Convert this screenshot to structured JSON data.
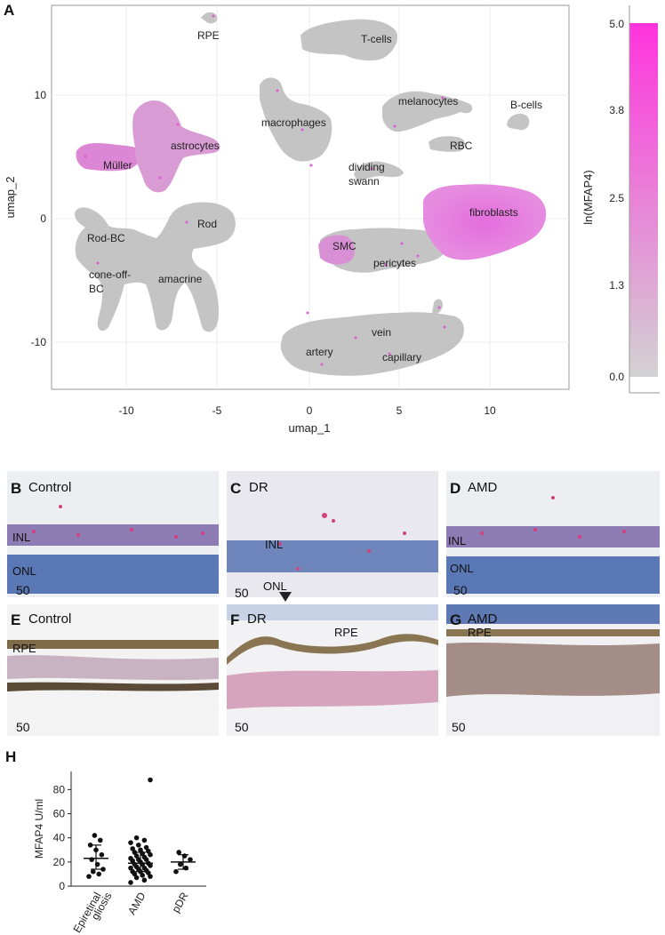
{
  "panelA": {
    "letter": "A",
    "xlabel": "umap_1",
    "ylabel": "umap_2",
    "xticks": [
      "-10",
      "-5",
      "0",
      "5",
      "10"
    ],
    "yticks": [
      "10",
      "0",
      "-10"
    ],
    "clusters": [
      "RPE",
      "T-cells",
      "melanocytes",
      "B-cells",
      "macrophages",
      "RBC",
      "astrocytes",
      "Müller",
      "dividing",
      "swann",
      "fibroblasts",
      "Rod",
      "Rod-BC",
      "SMC",
      "pericytes",
      "cone-off-",
      "BC",
      "amacrine",
      "vein",
      "artery",
      "capillary"
    ],
    "colorbar": {
      "label": "ln(MFAP4)",
      "ticks": [
        "5.0",
        "3.8",
        "2.5",
        "1.3",
        "0.0"
      ],
      "color_low": "#d2d2d2",
      "color_high": "#ff33dd"
    },
    "point_color": "#c4c4c4",
    "highlight_color": "#e070d8"
  },
  "micro": {
    "B": {
      "letter": "B",
      "title": "Control",
      "labels": [
        "INL",
        "ONL"
      ],
      "scale": "50"
    },
    "C": {
      "letter": "C",
      "title": "DR",
      "labels": [
        "INL",
        "ONL"
      ],
      "scale": "50"
    },
    "D": {
      "letter": "D",
      "title": "AMD",
      "labels": [
        "INL",
        "ONL"
      ],
      "scale": "50"
    },
    "E": {
      "letter": "E",
      "title": "Control",
      "labels": [
        "RPE"
      ],
      "scale": "50"
    },
    "F": {
      "letter": "F",
      "title": "DR",
      "labels": [
        "RPE"
      ],
      "scale": "50"
    },
    "G": {
      "letter": "G",
      "title": "AMD",
      "labels": [
        "RPE"
      ],
      "scale": "50"
    }
  },
  "panelH": {
    "letter": "H"
  },
  "chart_data": {
    "type": "scatter",
    "ylabel": "MFAP4 U/ml",
    "yticks": [
      "0",
      "20",
      "40",
      "60",
      "80"
    ],
    "ylim": [
      0,
      95
    ],
    "categories": [
      "Epiretinal gliosis",
      "AMD",
      "pDR"
    ],
    "category_labels": [
      [
        "Epiretinal",
        "gliosis"
      ],
      [
        "AMD"
      ],
      [
        "pDR"
      ]
    ],
    "series": [
      {
        "values": [
          8,
          10,
          12,
          14,
          18,
          22,
          26,
          30,
          34,
          38,
          42
        ]
      },
      {
        "values": [
          3,
          5,
          7,
          8,
          9,
          10,
          11,
          12,
          12,
          13,
          14,
          15,
          15,
          16,
          17,
          18,
          18,
          19,
          20,
          21,
          22,
          22,
          23,
          24,
          25,
          26,
          27,
          28,
          29,
          30,
          31,
          32,
          34,
          36,
          38,
          40,
          88
        ]
      },
      {
        "values": [
          12,
          15,
          18,
          22,
          25,
          28
        ]
      }
    ],
    "summary": [
      {
        "median": 23,
        "lower": 14,
        "upper": 34
      },
      {
        "median": 19,
        "lower": 12,
        "upper": 28
      },
      {
        "median": 20,
        "lower": 14,
        "upper": 26
      }
    ]
  }
}
